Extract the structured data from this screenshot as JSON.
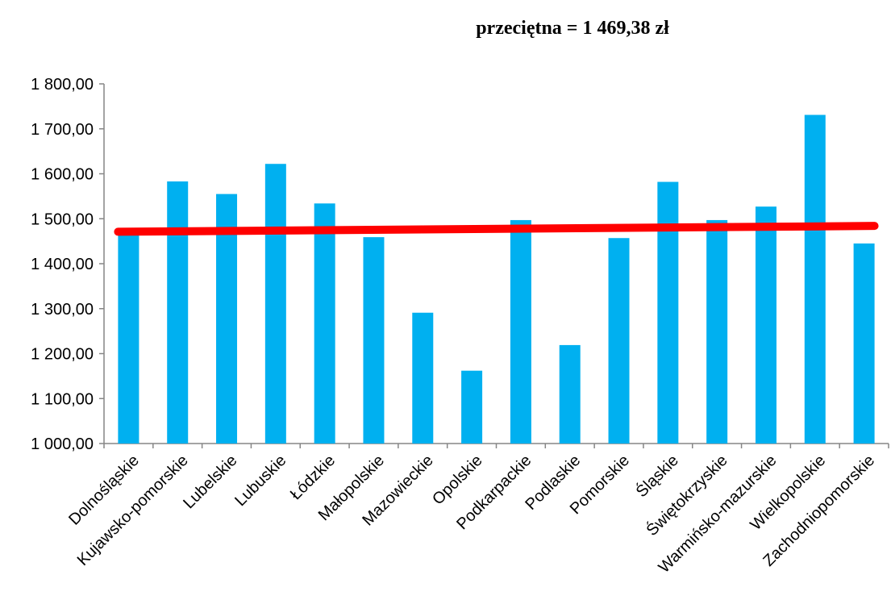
{
  "chart_data": {
    "type": "bar",
    "title": "przeciętna = 1 469,38 zł",
    "xlabel": "",
    "ylabel": "",
    "categories": [
      "Dolnośląskie",
      "Kujawsko-pomorskie",
      "Lubelskie",
      "Lubuskie",
      "Łódzkie",
      "Małopolskie",
      "Mazowieckie",
      "Opolskie",
      "Podkarpackie",
      "Podlaskie",
      "Pomorskie",
      "Śląskie",
      "Świętokrzyskie",
      "Warmińsko-mazurskie",
      "Wielkopolskie",
      "Zachodniopomorskie"
    ],
    "values": [
      1468,
      1583,
      1555,
      1622,
      1534,
      1459,
      1291,
      1162,
      1497,
      1219,
      1457,
      1582,
      1497,
      1527,
      1731,
      1445
    ],
    "ylim": [
      1000,
      1800
    ],
    "yticks": [
      1000,
      1100,
      1200,
      1300,
      1400,
      1500,
      1600,
      1700,
      1800
    ],
    "ytick_labels": [
      "1 000,00",
      "1 100,00",
      "1 200,00",
      "1 300,00",
      "1 400,00",
      "1 500,00",
      "1 600,00",
      "1 700,00",
      "1 800,00"
    ],
    "trendline": {
      "type": "linear",
      "start_value": 1471,
      "end_value": 1484
    },
    "grid": false,
    "legend": "none",
    "colors": {
      "bar": "#00B0F0",
      "trendline": "#FF0000",
      "axis": "#868686",
      "text": "#000000"
    }
  }
}
